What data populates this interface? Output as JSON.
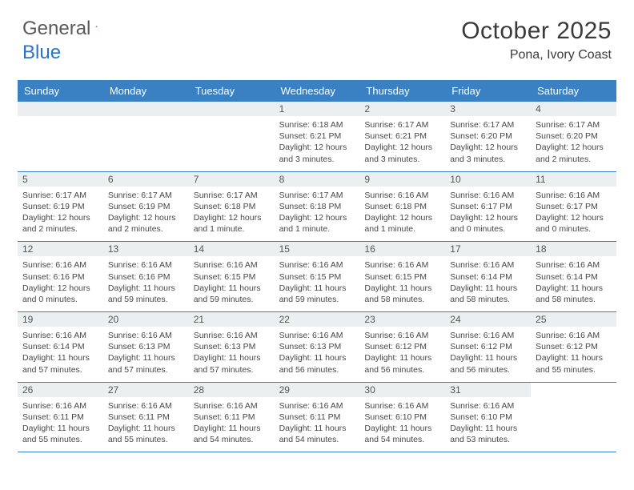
{
  "logo": {
    "general": "General",
    "blue": "Blue"
  },
  "title": "October 2025",
  "location": "Pona, Ivory Coast",
  "colors": {
    "header_bg": "#3a81c4",
    "header_text": "#ffffff",
    "accent_blue": "#2b74c2",
    "daynum_bg": "#eceff0",
    "border": "#3a81c4",
    "body_text": "#474747"
  },
  "day_names": [
    "Sunday",
    "Monday",
    "Tuesday",
    "Wednesday",
    "Thursday",
    "Friday",
    "Saturday"
  ],
  "layout": {
    "cols": 7,
    "rows": 5,
    "first_day_col": 3
  },
  "days": [
    {
      "n": "1",
      "sunrise": "Sunrise: 6:18 AM",
      "sunset": "Sunset: 6:21 PM",
      "daylight": "Daylight: 12 hours and 3 minutes."
    },
    {
      "n": "2",
      "sunrise": "Sunrise: 6:17 AM",
      "sunset": "Sunset: 6:21 PM",
      "daylight": "Daylight: 12 hours and 3 minutes."
    },
    {
      "n": "3",
      "sunrise": "Sunrise: 6:17 AM",
      "sunset": "Sunset: 6:20 PM",
      "daylight": "Daylight: 12 hours and 3 minutes."
    },
    {
      "n": "4",
      "sunrise": "Sunrise: 6:17 AM",
      "sunset": "Sunset: 6:20 PM",
      "daylight": "Daylight: 12 hours and 2 minutes."
    },
    {
      "n": "5",
      "sunrise": "Sunrise: 6:17 AM",
      "sunset": "Sunset: 6:19 PM",
      "daylight": "Daylight: 12 hours and 2 minutes."
    },
    {
      "n": "6",
      "sunrise": "Sunrise: 6:17 AM",
      "sunset": "Sunset: 6:19 PM",
      "daylight": "Daylight: 12 hours and 2 minutes."
    },
    {
      "n": "7",
      "sunrise": "Sunrise: 6:17 AM",
      "sunset": "Sunset: 6:18 PM",
      "daylight": "Daylight: 12 hours and 1 minute."
    },
    {
      "n": "8",
      "sunrise": "Sunrise: 6:17 AM",
      "sunset": "Sunset: 6:18 PM",
      "daylight": "Daylight: 12 hours and 1 minute."
    },
    {
      "n": "9",
      "sunrise": "Sunrise: 6:16 AM",
      "sunset": "Sunset: 6:18 PM",
      "daylight": "Daylight: 12 hours and 1 minute."
    },
    {
      "n": "10",
      "sunrise": "Sunrise: 6:16 AM",
      "sunset": "Sunset: 6:17 PM",
      "daylight": "Daylight: 12 hours and 0 minutes."
    },
    {
      "n": "11",
      "sunrise": "Sunrise: 6:16 AM",
      "sunset": "Sunset: 6:17 PM",
      "daylight": "Daylight: 12 hours and 0 minutes."
    },
    {
      "n": "12",
      "sunrise": "Sunrise: 6:16 AM",
      "sunset": "Sunset: 6:16 PM",
      "daylight": "Daylight: 12 hours and 0 minutes."
    },
    {
      "n": "13",
      "sunrise": "Sunrise: 6:16 AM",
      "sunset": "Sunset: 6:16 PM",
      "daylight": "Daylight: 11 hours and 59 minutes."
    },
    {
      "n": "14",
      "sunrise": "Sunrise: 6:16 AM",
      "sunset": "Sunset: 6:15 PM",
      "daylight": "Daylight: 11 hours and 59 minutes."
    },
    {
      "n": "15",
      "sunrise": "Sunrise: 6:16 AM",
      "sunset": "Sunset: 6:15 PM",
      "daylight": "Daylight: 11 hours and 59 minutes."
    },
    {
      "n": "16",
      "sunrise": "Sunrise: 6:16 AM",
      "sunset": "Sunset: 6:15 PM",
      "daylight": "Daylight: 11 hours and 58 minutes."
    },
    {
      "n": "17",
      "sunrise": "Sunrise: 6:16 AM",
      "sunset": "Sunset: 6:14 PM",
      "daylight": "Daylight: 11 hours and 58 minutes."
    },
    {
      "n": "18",
      "sunrise": "Sunrise: 6:16 AM",
      "sunset": "Sunset: 6:14 PM",
      "daylight": "Daylight: 11 hours and 58 minutes."
    },
    {
      "n": "19",
      "sunrise": "Sunrise: 6:16 AM",
      "sunset": "Sunset: 6:14 PM",
      "daylight": "Daylight: 11 hours and 57 minutes."
    },
    {
      "n": "20",
      "sunrise": "Sunrise: 6:16 AM",
      "sunset": "Sunset: 6:13 PM",
      "daylight": "Daylight: 11 hours and 57 minutes."
    },
    {
      "n": "21",
      "sunrise": "Sunrise: 6:16 AM",
      "sunset": "Sunset: 6:13 PM",
      "daylight": "Daylight: 11 hours and 57 minutes."
    },
    {
      "n": "22",
      "sunrise": "Sunrise: 6:16 AM",
      "sunset": "Sunset: 6:13 PM",
      "daylight": "Daylight: 11 hours and 56 minutes."
    },
    {
      "n": "23",
      "sunrise": "Sunrise: 6:16 AM",
      "sunset": "Sunset: 6:12 PM",
      "daylight": "Daylight: 11 hours and 56 minutes."
    },
    {
      "n": "24",
      "sunrise": "Sunrise: 6:16 AM",
      "sunset": "Sunset: 6:12 PM",
      "daylight": "Daylight: 11 hours and 56 minutes."
    },
    {
      "n": "25",
      "sunrise": "Sunrise: 6:16 AM",
      "sunset": "Sunset: 6:12 PM",
      "daylight": "Daylight: 11 hours and 55 minutes."
    },
    {
      "n": "26",
      "sunrise": "Sunrise: 6:16 AM",
      "sunset": "Sunset: 6:11 PM",
      "daylight": "Daylight: 11 hours and 55 minutes."
    },
    {
      "n": "27",
      "sunrise": "Sunrise: 6:16 AM",
      "sunset": "Sunset: 6:11 PM",
      "daylight": "Daylight: 11 hours and 55 minutes."
    },
    {
      "n": "28",
      "sunrise": "Sunrise: 6:16 AM",
      "sunset": "Sunset: 6:11 PM",
      "daylight": "Daylight: 11 hours and 54 minutes."
    },
    {
      "n": "29",
      "sunrise": "Sunrise: 6:16 AM",
      "sunset": "Sunset: 6:11 PM",
      "daylight": "Daylight: 11 hours and 54 minutes."
    },
    {
      "n": "30",
      "sunrise": "Sunrise: 6:16 AM",
      "sunset": "Sunset: 6:10 PM",
      "daylight": "Daylight: 11 hours and 54 minutes."
    },
    {
      "n": "31",
      "sunrise": "Sunrise: 6:16 AM",
      "sunset": "Sunset: 6:10 PM",
      "daylight": "Daylight: 11 hours and 53 minutes."
    }
  ]
}
